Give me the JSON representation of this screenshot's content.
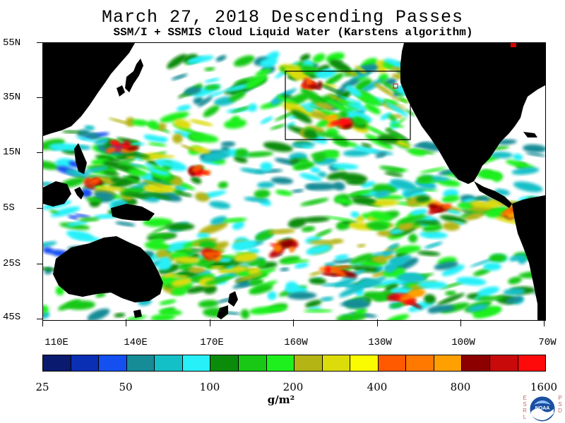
{
  "header": {
    "title": "March 27, 2018  Descending Passes",
    "subtitle": "SSM/I + SSMIS Cloud Liquid Water (Karstens algorithm)"
  },
  "map": {
    "lat_labels": [
      "55N",
      "35N",
      "15N",
      "5S",
      "25S",
      "45S"
    ],
    "lon_labels": [
      "110E",
      "140E",
      "170E",
      "160W",
      "130W",
      "100W",
      "70W"
    ],
    "land_color": "#000000",
    "no_data_color": "#ffffff",
    "inset_box_color": "#000000"
  },
  "colorbar": {
    "colors": [
      "#0a1a6e",
      "#0a2fb4",
      "#1450f0",
      "#168c96",
      "#14c0c8",
      "#28f0f8",
      "#0a8c0a",
      "#18c814",
      "#1ef01e",
      "#b4b414",
      "#dcdc0a",
      "#fafa00",
      "#ff5a00",
      "#ff7800",
      "#ffa000",
      "#8c0000",
      "#c80a0a",
      "#ff0a0a"
    ],
    "labels": [
      "25",
      "50",
      "100",
      "200",
      "400",
      "800",
      "1600"
    ],
    "units": "g/m²"
  },
  "logo": {
    "left_letters": [
      "E",
      "S",
      "R",
      "L"
    ],
    "right_letters": [
      "P",
      "S",
      "D"
    ],
    "center_text": "NOAA"
  }
}
